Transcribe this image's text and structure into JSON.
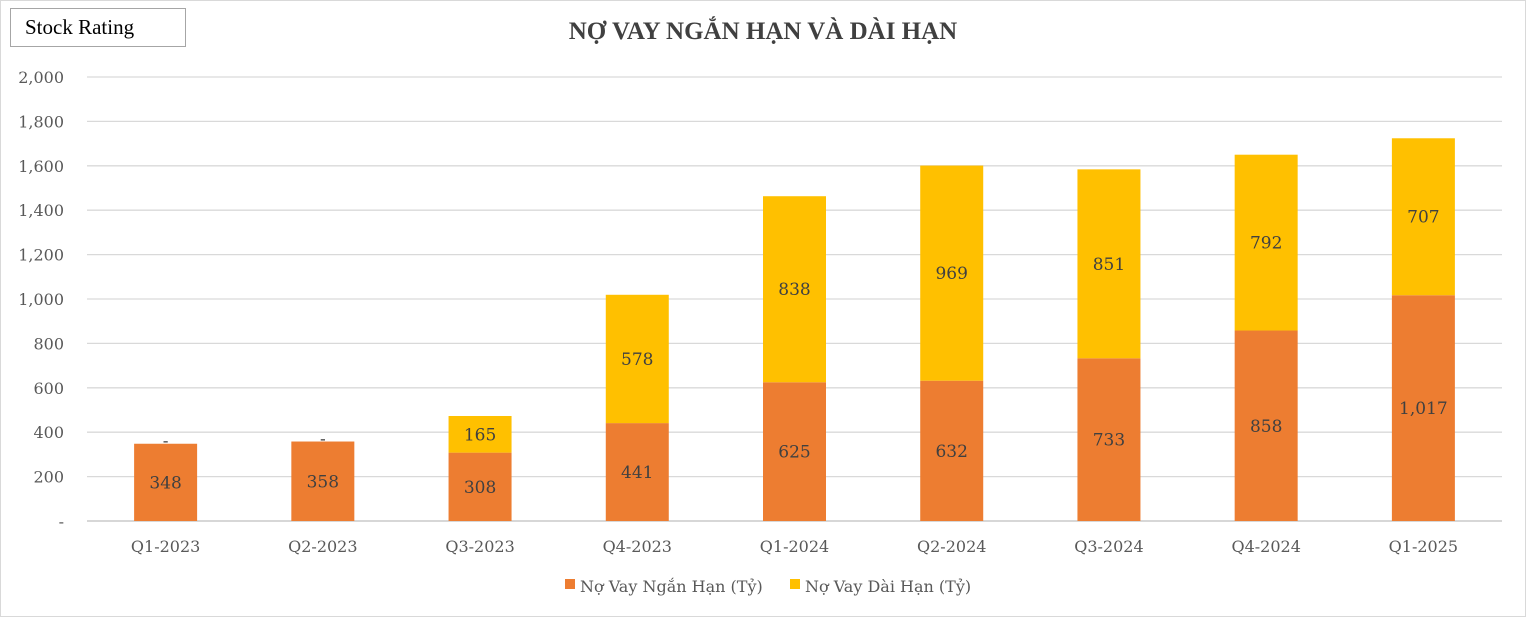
{
  "badge": "Stock Rating",
  "chart_data": {
    "type": "bar",
    "stacked": true,
    "title": "NỢ VAY NGẮN HẠN VÀ DÀI HẠN",
    "categories": [
      "Q1-2023",
      "Q2-2023",
      "Q3-2023",
      "Q4-2023",
      "Q1-2024",
      "Q2-2024",
      "Q3-2024",
      "Q4-2024",
      "Q1-2025"
    ],
    "series": [
      {
        "name": "Nợ Vay Ngắn Hạn (Tỷ)",
        "color": "#ED7D31",
        "values": [
          348,
          358,
          308,
          441,
          625,
          632,
          733,
          858,
          1017
        ],
        "labels": [
          "348",
          "358",
          "308",
          "441",
          "625",
          "632",
          "733",
          "858",
          "1,017"
        ]
      },
      {
        "name": "Nợ Vay Dài Hạn (Tỷ)",
        "color": "#FFC000",
        "values": [
          0,
          0,
          165,
          578,
          838,
          969,
          851,
          792,
          707
        ],
        "labels": [
          "-",
          "-",
          "165",
          "578",
          "838",
          "969",
          "851",
          "792",
          "707"
        ]
      }
    ],
    "ylim": [
      0,
      2000
    ],
    "yticks": [
      0,
      200,
      400,
      600,
      800,
      1000,
      1200,
      1400,
      1600,
      1800,
      2000
    ],
    "ytick_labels": [
      "-",
      "200",
      "400",
      "600",
      "800",
      "1,000",
      "1,200",
      "1,400",
      "1,600",
      "1,800",
      "2,000"
    ],
    "grid": true,
    "legend": "bottom",
    "xlabel": "",
    "ylabel": ""
  }
}
